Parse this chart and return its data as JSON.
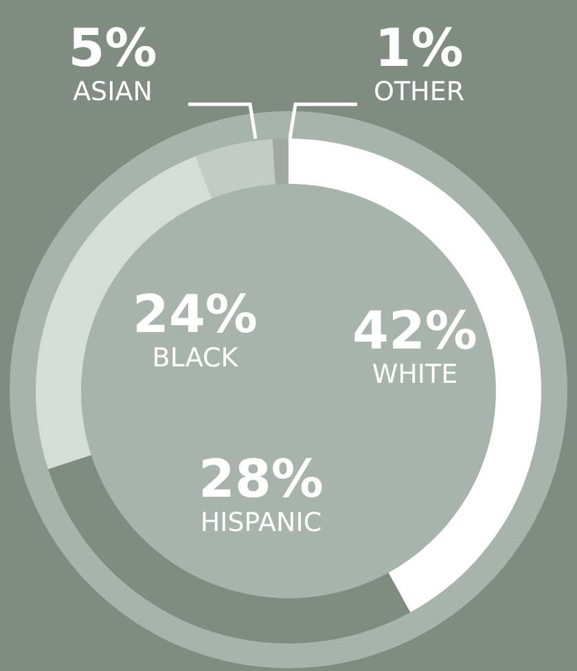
{
  "chart_data": {
    "type": "donut",
    "categories": [
      "WHITE",
      "HISPANIC",
      "BLACK",
      "ASIAN",
      "OTHER"
    ],
    "values": [
      42,
      28,
      24,
      5,
      1
    ],
    "value_labels": [
      "42%",
      "28%",
      "24%",
      "5%",
      "1%"
    ],
    "colors": [
      "#ffffff",
      "#808b82",
      "#d6ddd9",
      "#c2cbc5",
      "#9fa9a2"
    ]
  }
}
